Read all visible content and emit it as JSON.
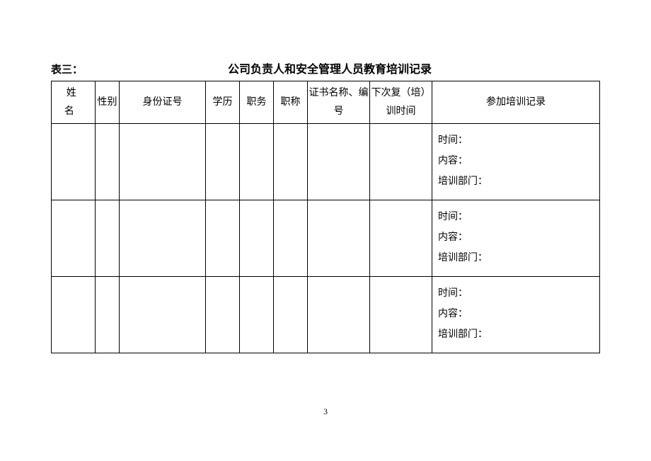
{
  "header": {
    "table_label": "表三：",
    "title": "公司负责人和安全管理人员教育培训记录"
  },
  "columns": {
    "name": "姓　名",
    "gender": "性别",
    "id_no": "身份证号",
    "education": "学历",
    "post": "职务",
    "title": "职称",
    "cert": "证书名称、编号",
    "next": "下次复（培）训时间",
    "record": "参加培训记录"
  },
  "record_labels": {
    "time": "时间：",
    "content": "内容：",
    "dept": "培训部门："
  },
  "rows": [
    {
      "name": "",
      "gender": "",
      "id_no": "",
      "education": "",
      "post": "",
      "title": "",
      "cert": "",
      "next": ""
    },
    {
      "name": "",
      "gender": "",
      "id_no": "",
      "education": "",
      "post": "",
      "title": "",
      "cert": "",
      "next": ""
    },
    {
      "name": "",
      "gender": "",
      "id_no": "",
      "education": "",
      "post": "",
      "title": "",
      "cert": "",
      "next": ""
    }
  ],
  "page_number": "3",
  "style": {
    "font_family": "SimSun",
    "border_color": "#000000",
    "background": "#ffffff",
    "title_fontsize": 16,
    "cell_fontsize": 14
  }
}
